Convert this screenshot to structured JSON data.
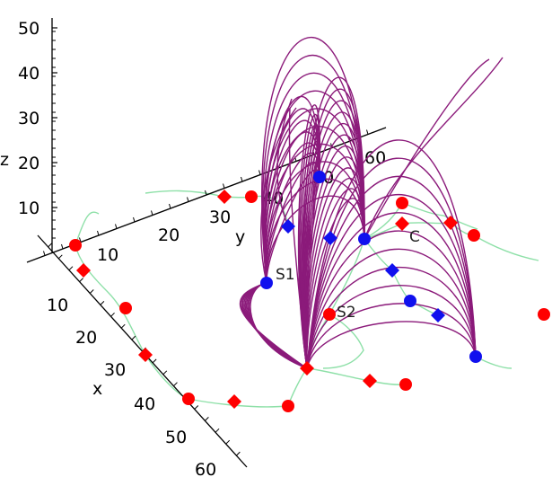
{
  "chart_data": {
    "type": "scatter",
    "projection": "3d",
    "axes": {
      "x": {
        "label": "x",
        "ticks": [
          "10",
          "20",
          "30",
          "40",
          "50",
          "60"
        ]
      },
      "y": {
        "label": "y",
        "ticks": [
          "10",
          "20",
          "30",
          "40",
          "50",
          "60"
        ]
      },
      "z": {
        "label": "z",
        "ticks": [
          "10",
          "20",
          "30",
          "40",
          "50"
        ]
      }
    },
    "annotations": [
      "S1",
      "S2",
      "C"
    ],
    "colors": {
      "flux_lines": "#8b1a7a",
      "backbone": "#8ee0a8",
      "red_markers": "#ff0000",
      "blue_markers": "#1010ee",
      "axes": "#000000"
    },
    "marker_shapes": {
      "circle": "circle",
      "diamond": "diamond"
    }
  }
}
